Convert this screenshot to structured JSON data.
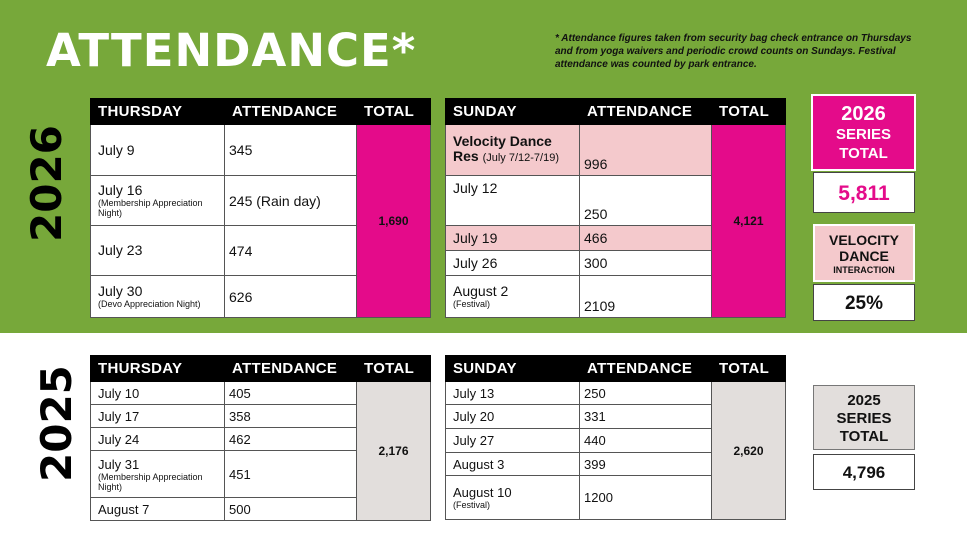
{
  "header": {
    "title": "ATTENDANCE*",
    "note": "* Attendance figures taken from security bag check entrance on Thursdays and from yoga waivers and periodic crowd counts on Sundays. Festival attendance was counted by park entrance."
  },
  "colors": {
    "band": "#77a83a",
    "pink": "#e40b8a",
    "light_pink": "#f4c9cc",
    "grey": "#e2dedc"
  },
  "y2026": {
    "year_label": "2026",
    "thursday": {
      "headers": [
        "THURSDAY",
        "ATTENDANCE",
        "TOTAL"
      ],
      "rows": [
        {
          "day": "July 9",
          "sub": "",
          "attendance": "345"
        },
        {
          "day": "July 16",
          "sub": "(Membership Appreciation Night)",
          "attendance": "245 (Rain day)"
        },
        {
          "day": "July 23",
          "sub": "",
          "attendance": "474"
        },
        {
          "day": "July 30",
          "sub": "(Devo Appreciation Night)",
          "attendance": "626"
        }
      ],
      "total": "1,690"
    },
    "sunday": {
      "headers": [
        "SUNDAY",
        "ATTENDANCE",
        "TOTAL"
      ],
      "rows": [
        {
          "day": "Velocity Dance Res",
          "sub": "(July 7/12-7/19)",
          "attendance": "996"
        },
        {
          "day": "July 12",
          "sub": "",
          "attendance": "250"
        },
        {
          "day": "July 19",
          "sub": "",
          "attendance": "466"
        },
        {
          "day": "July 26",
          "sub": "",
          "attendance": "300"
        },
        {
          "day": "August 2",
          "sub": "(Festival)",
          "attendance": "2109"
        }
      ],
      "total": "4,121"
    },
    "series": {
      "label_year": "2026",
      "label_line2": "SERIES",
      "label_line3": "TOTAL",
      "value": "5,811"
    },
    "velocity": {
      "line1": "VELOCITY",
      "line2": "DANCE",
      "line3": "INTERACTION",
      "value": "25%"
    }
  },
  "y2025": {
    "year_label": "2025",
    "thursday": {
      "headers": [
        "THURSDAY",
        "ATTENDANCE",
        "TOTAL"
      ],
      "rows": [
        {
          "day": "July 10",
          "sub": "",
          "attendance": "405"
        },
        {
          "day": "July 17",
          "sub": "",
          "attendance": "358"
        },
        {
          "day": "July 24",
          "sub": "",
          "attendance": "462"
        },
        {
          "day": "July 31",
          "sub": "(Membership Appreciation Night)",
          "attendance": "451"
        },
        {
          "day": "August 7",
          "sub": "",
          "attendance": "500"
        }
      ],
      "total": "2,176"
    },
    "sunday": {
      "headers": [
        "SUNDAY",
        "ATTENDANCE",
        "TOTAL"
      ],
      "rows": [
        {
          "day": "July 13",
          "sub": "",
          "attendance": "250"
        },
        {
          "day": "July 20",
          "sub": "",
          "attendance": "331"
        },
        {
          "day": "July 27",
          "sub": "",
          "attendance": "440"
        },
        {
          "day": "August 3",
          "sub": "",
          "attendance": "399"
        },
        {
          "day": "August 10",
          "sub": "(Festival)",
          "attendance": "1200"
        }
      ],
      "total": "2,620"
    },
    "series": {
      "label_year": "2025",
      "label_line2": "SERIES",
      "label_line3": "TOTAL",
      "value": "4,796"
    }
  }
}
